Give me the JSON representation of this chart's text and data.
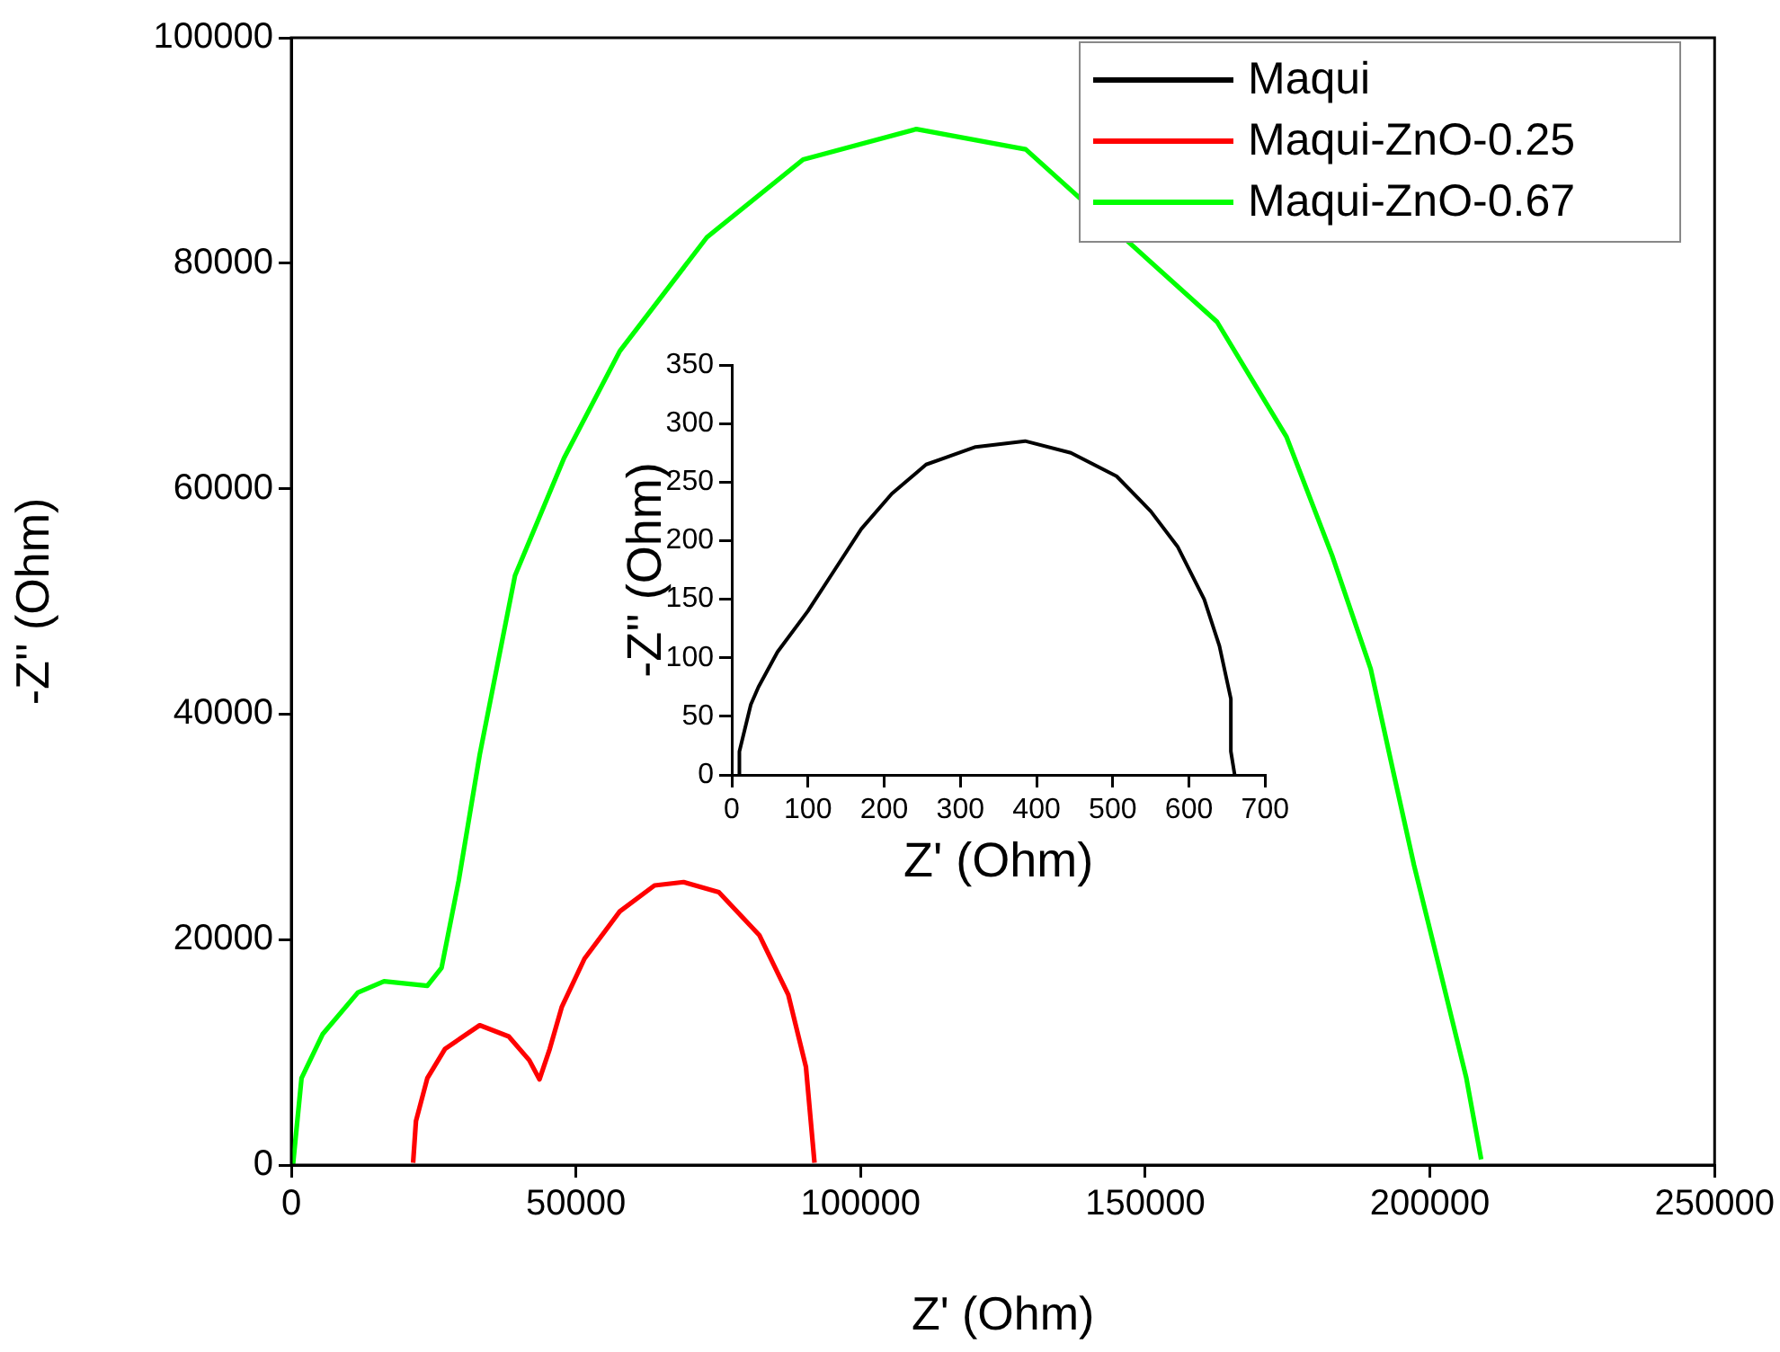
{
  "chart_data": [
    {
      "type": "line",
      "xlabel": "Z' (Ohm)",
      "ylabel": "-Z'' (Ohm)",
      "xlim": [
        0,
        700
      ],
      "ylim": [
        0,
        350
      ],
      "xticks": [
        0,
        100,
        200,
        300,
        400,
        500,
        600,
        700
      ],
      "yticks": [
        0,
        50,
        100,
        150,
        200,
        250,
        300,
        350
      ],
      "series": [
        {
          "name": "Maqui",
          "color": "#000000",
          "x": [
            10,
            10,
            25,
            35,
            60,
            100,
            135,
            170,
            210,
            255,
            320,
            385,
            445,
            505,
            550,
            585,
            620,
            640,
            655,
            655,
            660
          ],
          "values": [
            0,
            20,
            60,
            75,
            105,
            140,
            175,
            210,
            240,
            265,
            280,
            285,
            275,
            255,
            225,
            195,
            150,
            110,
            65,
            20,
            0
          ]
        }
      ]
    },
    {
      "type": "line",
      "xlabel": "Z' (Ohm)",
      "ylabel": "-Z'' (Ohm)",
      "xlim": [
        0,
        250000
      ],
      "ylim": [
        0,
        100000
      ],
      "xticks": [
        0,
        50000,
        100000,
        150000,
        200000,
        250000
      ],
      "yticks": [
        0,
        20000,
        40000,
        60000,
        80000,
        100000
      ],
      "legend": "top right",
      "series": [
        {
          "name": "Maqui-ZnO-0.25",
          "color": "#ff0000",
          "x": [
            21400,
            21900,
            23900,
            27000,
            33100,
            38200,
            41800,
            43600,
            45400,
            47500,
            51500,
            57700,
            63800,
            68900,
            75100,
            82200,
            87300,
            90400,
            91900
          ],
          "values": [
            200,
            3900,
            7700,
            10300,
            12400,
            11400,
            9300,
            7600,
            10300,
            14000,
            18300,
            22500,
            24800,
            25100,
            24200,
            20400,
            15100,
            8700,
            200
          ]
        },
        {
          "name": "Maqui-ZnO-0.67",
          "color": "#00ff00",
          "x": [
            300,
            1800,
            5500,
            11700,
            16300,
            23900,
            26400,
            29400,
            33100,
            39300,
            47900,
            57700,
            73000,
            89900,
            109800,
            129000,
            162600,
            174800,
            182800,
            189600,
            193600,
            197200,
            201800,
            206400,
            209000
          ],
          "values": [
            0,
            7700,
            11600,
            15300,
            16300,
            15900,
            17500,
            25200,
            36400,
            52300,
            62700,
            72200,
            82300,
            89200,
            91900,
            90100,
            74800,
            64600,
            54100,
            44000,
            34800,
            26600,
            17200,
            7700,
            500
          ]
        }
      ]
    }
  ]
}
